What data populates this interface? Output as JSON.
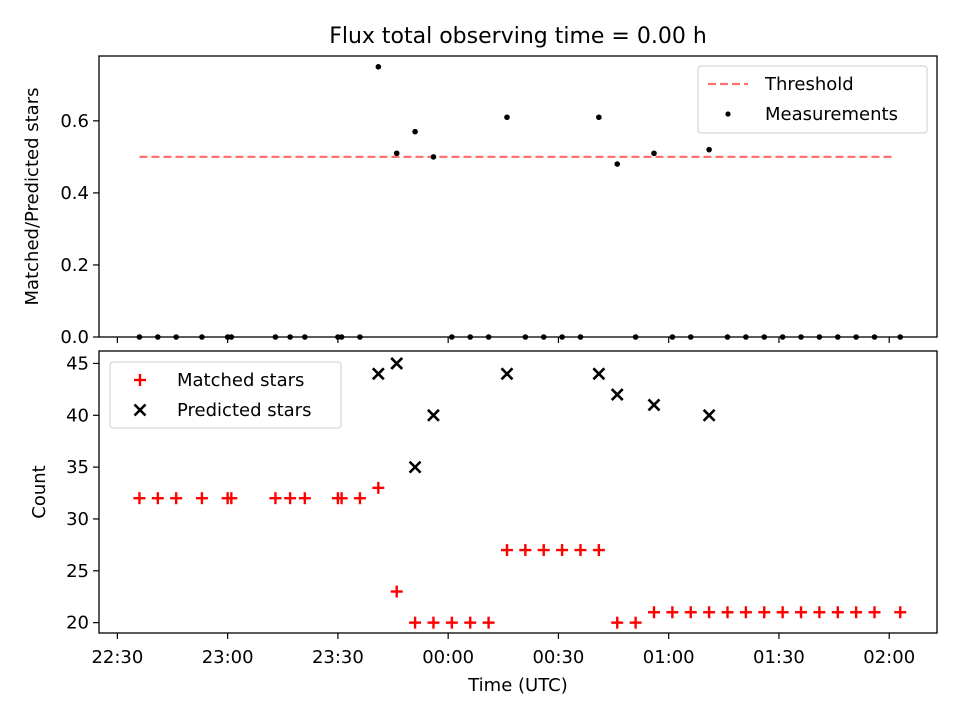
{
  "chart_data": [
    {
      "type": "scatter",
      "title": "Flux total observing time = 0.00 h",
      "xlabel": "",
      "ylabel": "Matched/Predicted stars",
      "ylim": [
        0,
        0.78
      ],
      "yticks": [
        0.0,
        0.2,
        0.4,
        0.6
      ],
      "ytick_labels": [
        "0.0",
        "0.2",
        "0.4",
        "0.6"
      ],
      "legend_position": "top-right",
      "threshold": {
        "name": "Threshold",
        "value": 0.5,
        "x_start": "22:36",
        "x_end": "02:01",
        "color": "#ff7070"
      },
      "series": [
        {
          "name": "Measurements",
          "color": "#000000",
          "x": [
            "22:36",
            "22:41",
            "22:46",
            "22:53",
            "23:00",
            "23:01",
            "23:13",
            "23:17",
            "23:21",
            "23:30",
            "23:31",
            "23:36",
            "23:41",
            "23:46",
            "23:51",
            "23:56",
            "00:01",
            "00:06",
            "00:11",
            "00:16",
            "00:21",
            "00:26",
            "00:31",
            "00:36",
            "00:41",
            "00:46",
            "00:51",
            "00:56",
            "01:01",
            "01:06",
            "01:11",
            "01:16",
            "01:21",
            "01:26",
            "01:31",
            "01:36",
            "01:41",
            "01:46",
            "01:51",
            "01:56",
            "02:03"
          ],
          "y": [
            0,
            0,
            0,
            0,
            0,
            0,
            0,
            0,
            0,
            0,
            0,
            0,
            0.75,
            0.51,
            0.57,
            0.5,
            0,
            0,
            0,
            0.61,
            0,
            0,
            0,
            0,
            0.61,
            0.48,
            0,
            0.51,
            0,
            0,
            0.52,
            0,
            0,
            0,
            0,
            0,
            0,
            0,
            0,
            0,
            0
          ]
        }
      ]
    },
    {
      "type": "scatter",
      "title": "",
      "xlabel": "Time (UTC)",
      "ylabel": "Count",
      "ylim": [
        19,
        46.2
      ],
      "yticks": [
        20,
        25,
        30,
        35,
        40,
        45
      ],
      "ytick_labels": [
        "20",
        "25",
        "30",
        "35",
        "40",
        "45"
      ],
      "xlim": [
        "22:25",
        "02:13"
      ],
      "xticks": [
        "22:30",
        "23:00",
        "23:30",
        "00:00",
        "00:30",
        "01:00",
        "01:30",
        "02:00"
      ],
      "legend_position": "top-left",
      "series": [
        {
          "name": "Matched stars",
          "marker": "plus",
          "color": "#ff0000",
          "x": [
            "22:36",
            "22:41",
            "22:46",
            "22:53",
            "23:00",
            "23:01",
            "23:13",
            "23:17",
            "23:21",
            "23:30",
            "23:31",
            "23:36",
            "23:41",
            "23:46",
            "23:51",
            "23:56",
            "00:01",
            "00:06",
            "00:11",
            "00:16",
            "00:21",
            "00:26",
            "00:31",
            "00:36",
            "00:41",
            "00:46",
            "00:51",
            "00:56",
            "01:01",
            "01:06",
            "01:11",
            "01:16",
            "01:21",
            "01:26",
            "01:31",
            "01:36",
            "01:41",
            "01:46",
            "01:51",
            "01:56",
            "02:03"
          ],
          "y": [
            32,
            32,
            32,
            32,
            32,
            32,
            32,
            32,
            32,
            32,
            32,
            32,
            33,
            23,
            20,
            20,
            20,
            20,
            20,
            27,
            27,
            27,
            27,
            27,
            27,
            20,
            20,
            21,
            21,
            21,
            21,
            21,
            21,
            21,
            21,
            21,
            21,
            21,
            21,
            21,
            21
          ]
        },
        {
          "name": "Predicted stars",
          "marker": "x",
          "color": "#000000",
          "x": [
            "23:41",
            "23:46",
            "23:51",
            "23:56",
            "00:16",
            "00:41",
            "00:46",
            "00:56",
            "01:11"
          ],
          "y": [
            44,
            45,
            35,
            40,
            44,
            44,
            42,
            41,
            40
          ]
        }
      ]
    }
  ]
}
